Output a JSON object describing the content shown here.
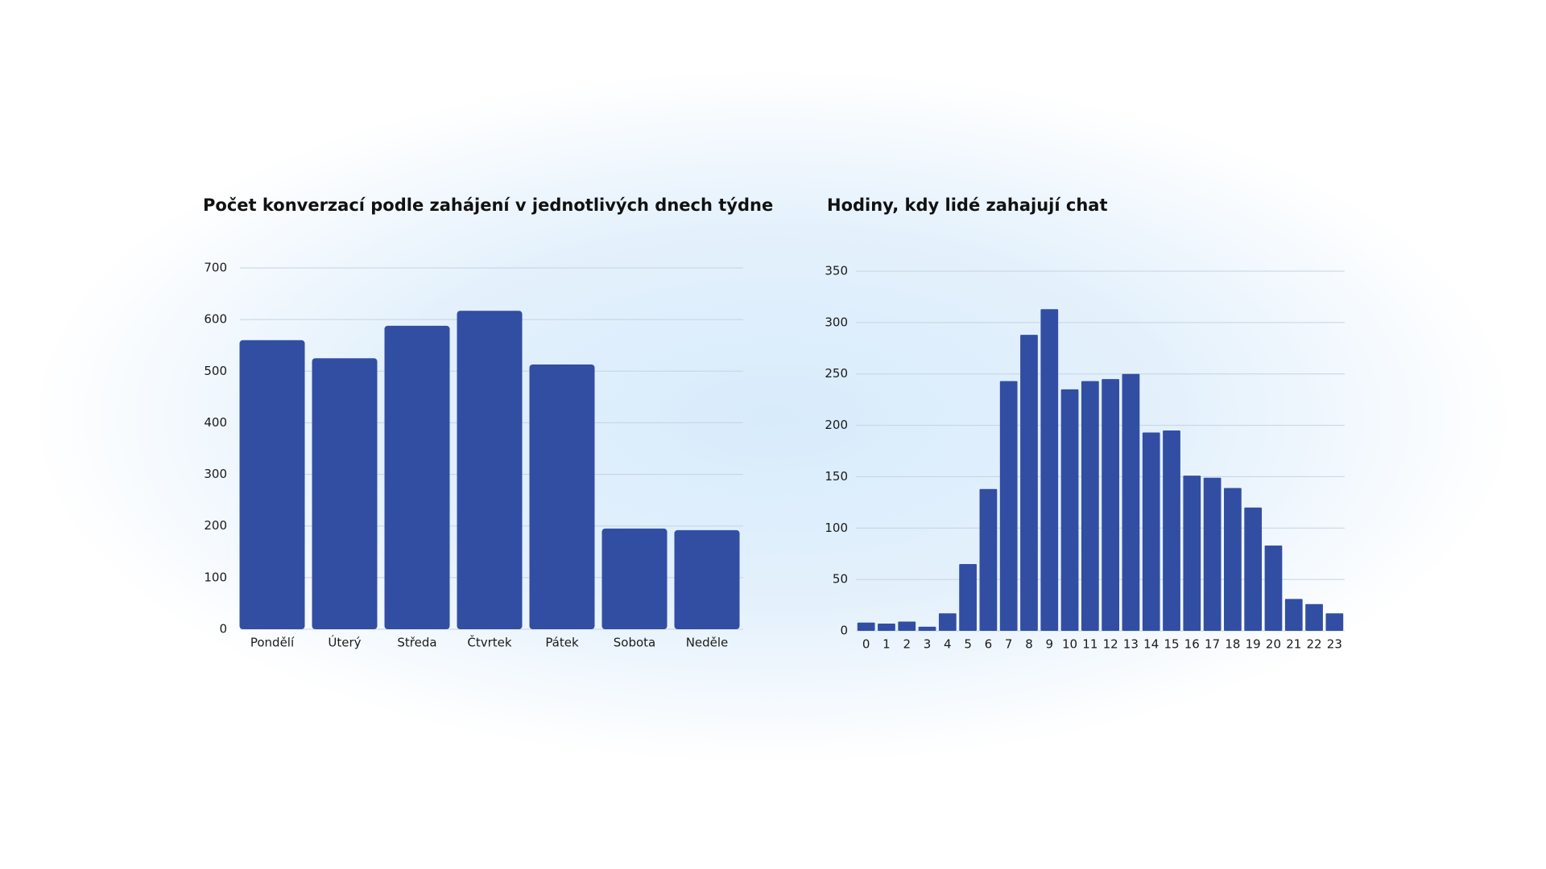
{
  "chart_data": [
    {
      "type": "bar",
      "title": "Počet konverzací podle zahájení v jednotlivých dnech týdne",
      "categories": [
        "Pondělí",
        "Úterý",
        "Středa",
        "Čtvrtek",
        "Pátek",
        "Sobota",
        "Neděle"
      ],
      "values": [
        560,
        525,
        588,
        617,
        513,
        195,
        192
      ],
      "color": "#324ea3",
      "ylim": [
        0,
        700
      ],
      "yticks": [
        0,
        100,
        200,
        300,
        400,
        500,
        600,
        700
      ],
      "grid": true
    },
    {
      "type": "bar",
      "title": "Hodiny, kdy lidé zahajují chat",
      "categories": [
        "0",
        "1",
        "2",
        "3",
        "4",
        "5",
        "6",
        "7",
        "8",
        "9",
        "10",
        "11",
        "12",
        "13",
        "14",
        "15",
        "16",
        "17",
        "18",
        "19",
        "20",
        "21",
        "22",
        "23"
      ],
      "values": [
        8,
        7,
        9,
        4,
        17,
        65,
        138,
        243,
        288,
        313,
        235,
        243,
        245,
        250,
        193,
        195,
        151,
        149,
        139,
        120,
        83,
        31,
        26,
        17
      ],
      "color": "#324ea3",
      "ylim": [
        0,
        350
      ],
      "yticks": [
        0,
        50,
        100,
        150,
        200,
        250,
        300,
        350
      ],
      "grid": true
    }
  ]
}
